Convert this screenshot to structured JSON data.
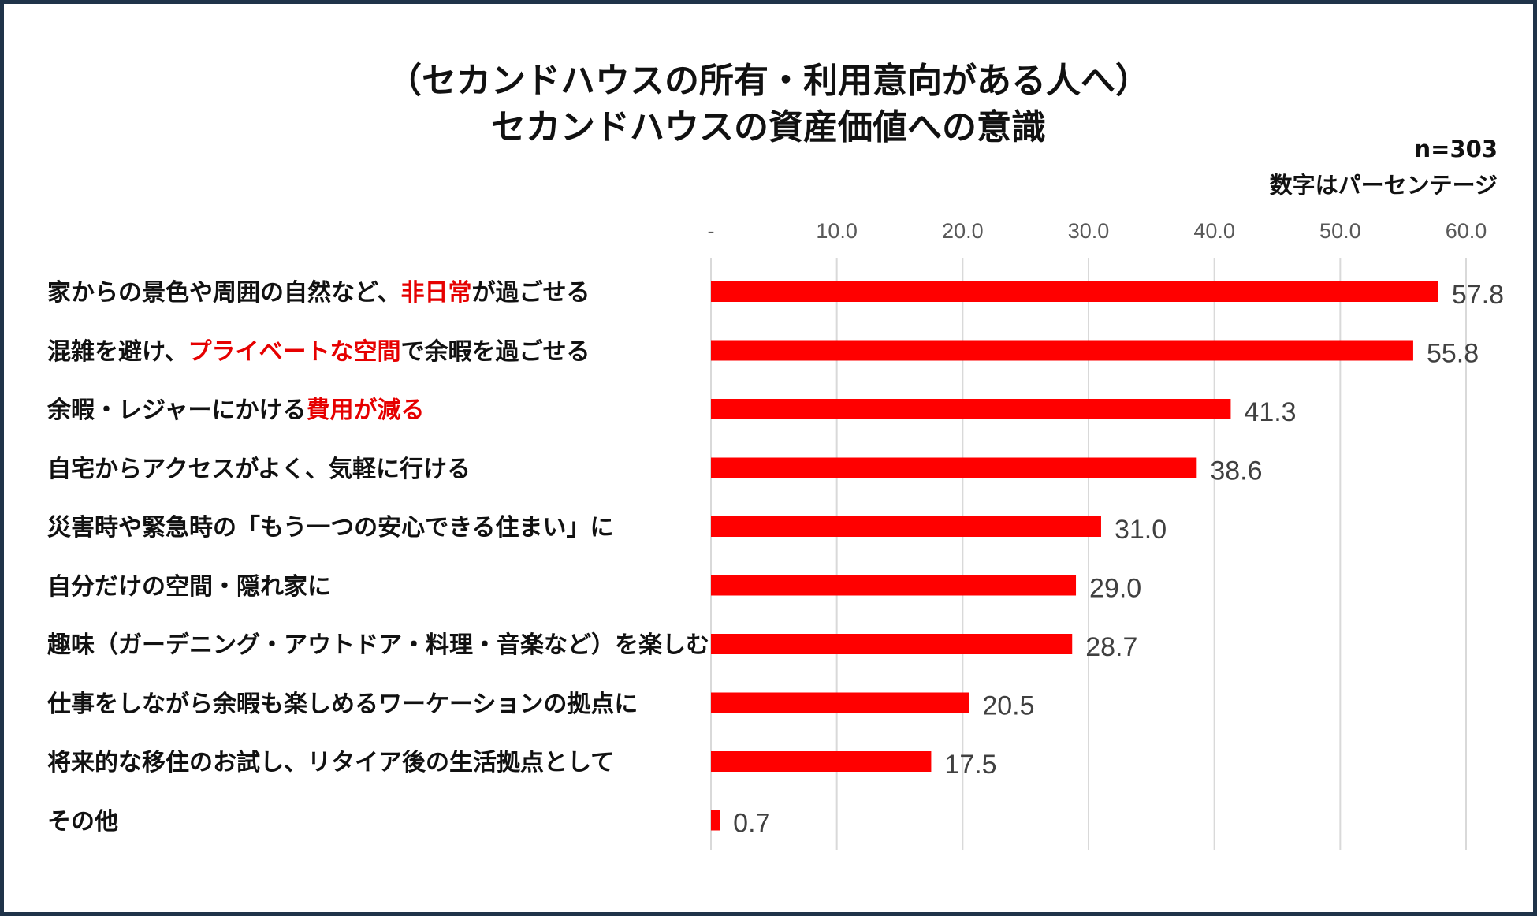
{
  "chart_data": {
    "type": "bar",
    "orientation": "horizontal",
    "title_lines": [
      "（セカンドハウスの所有・利用意向がある人へ）",
      "セカンドハウスの資産価値への意識"
    ],
    "sample_size": "n=303",
    "unit_note": "数字はパーセンテージ",
    "bar_color": "#ff0000",
    "highlight_color": "#e60000",
    "xlim": [
      0,
      60
    ],
    "grid": true,
    "ticks": [
      {
        "value": 0,
        "label": "-"
      },
      {
        "value": 10,
        "label": "10.0"
      },
      {
        "value": 20,
        "label": "20.0"
      },
      {
        "value": 30,
        "label": "30.0"
      },
      {
        "value": 40,
        "label": "40.0"
      },
      {
        "value": 50,
        "label": "50.0"
      },
      {
        "value": 60,
        "label": "60.0"
      }
    ],
    "categories": [
      {
        "segments": [
          {
            "text": "家からの景色や周囲の自然など、",
            "hl": false
          },
          {
            "text": "非日常",
            "hl": true
          },
          {
            "text": "が過ごせる",
            "hl": false
          }
        ]
      },
      {
        "segments": [
          {
            "text": "混雑を避け、",
            "hl": false
          },
          {
            "text": "プライベートな空間",
            "hl": true
          },
          {
            "text": "で余暇を過ごせる",
            "hl": false
          }
        ]
      },
      {
        "segments": [
          {
            "text": "余暇・レジャーにかける",
            "hl": false
          },
          {
            "text": "費用が減る",
            "hl": true
          }
        ]
      },
      {
        "segments": [
          {
            "text": "自宅からアクセスがよく、気軽に行ける",
            "hl": false
          }
        ]
      },
      {
        "segments": [
          {
            "text": "災害時や緊急時の「もう一つの安心できる住まい」に",
            "hl": false
          }
        ]
      },
      {
        "segments": [
          {
            "text": "自分だけの空間・隠れ家に",
            "hl": false
          }
        ]
      },
      {
        "segments": [
          {
            "text": "趣味（ガーデニング・アウトドア・料理・音楽など）を楽しむ",
            "hl": false
          }
        ]
      },
      {
        "segments": [
          {
            "text": "仕事をしながら余暇も楽しめるワーケーションの拠点に",
            "hl": false
          }
        ]
      },
      {
        "segments": [
          {
            "text": "将来的な移住のお試し、リタイア後の生活拠点として",
            "hl": false
          }
        ]
      },
      {
        "segments": [
          {
            "text": "その他",
            "hl": false
          }
        ]
      }
    ],
    "values": [
      57.8,
      55.8,
      41.3,
      38.6,
      31.0,
      29.0,
      28.7,
      20.5,
      17.5,
      0.7
    ],
    "value_labels": [
      "57.8",
      "55.8",
      "41.3",
      "38.6",
      "31.0",
      "29.0",
      "28.7",
      "20.5",
      "17.5",
      "0.7"
    ]
  }
}
